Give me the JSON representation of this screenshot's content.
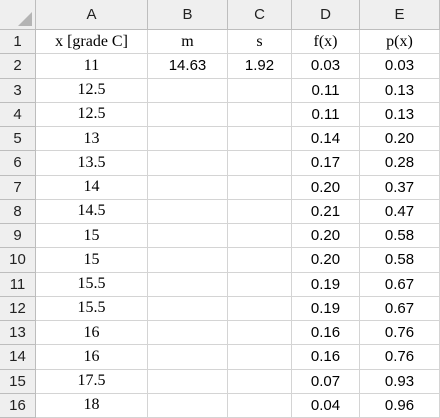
{
  "column_headers": [
    "A",
    "B",
    "C",
    "D",
    "E"
  ],
  "row_numbers": [
    "1",
    "2",
    "3",
    "4",
    "5",
    "6",
    "7",
    "8",
    "9",
    "10",
    "11",
    "12",
    "13",
    "14",
    "15",
    "16"
  ],
  "rows": [
    [
      "x [grade C]",
      "m",
      "s",
      "f(x)",
      "p(x)"
    ],
    [
      "11",
      "14.63",
      "1.92",
      "0.03",
      "0.03"
    ],
    [
      "12.5",
      null,
      null,
      "0.11",
      "0.13"
    ],
    [
      "12.5",
      null,
      null,
      "0.11",
      "0.13"
    ],
    [
      "13",
      null,
      null,
      "0.14",
      "0.20"
    ],
    [
      "13.5",
      null,
      null,
      "0.17",
      "0.28"
    ],
    [
      "14",
      null,
      null,
      "0.20",
      "0.37"
    ],
    [
      "14.5",
      null,
      null,
      "0.21",
      "0.47"
    ],
    [
      "15",
      null,
      null,
      "0.20",
      "0.58"
    ],
    [
      "15",
      null,
      null,
      "0.20",
      "0.58"
    ],
    [
      "15.5",
      null,
      null,
      "0.19",
      "0.67"
    ],
    [
      "15.5",
      null,
      null,
      "0.19",
      "0.67"
    ],
    [
      "16",
      null,
      null,
      "0.16",
      "0.76"
    ],
    [
      "16",
      null,
      null,
      "0.16",
      "0.76"
    ],
    [
      "17.5",
      null,
      null,
      "0.07",
      "0.93"
    ],
    [
      "18",
      null,
      null,
      "0.04",
      "0.96"
    ]
  ]
}
